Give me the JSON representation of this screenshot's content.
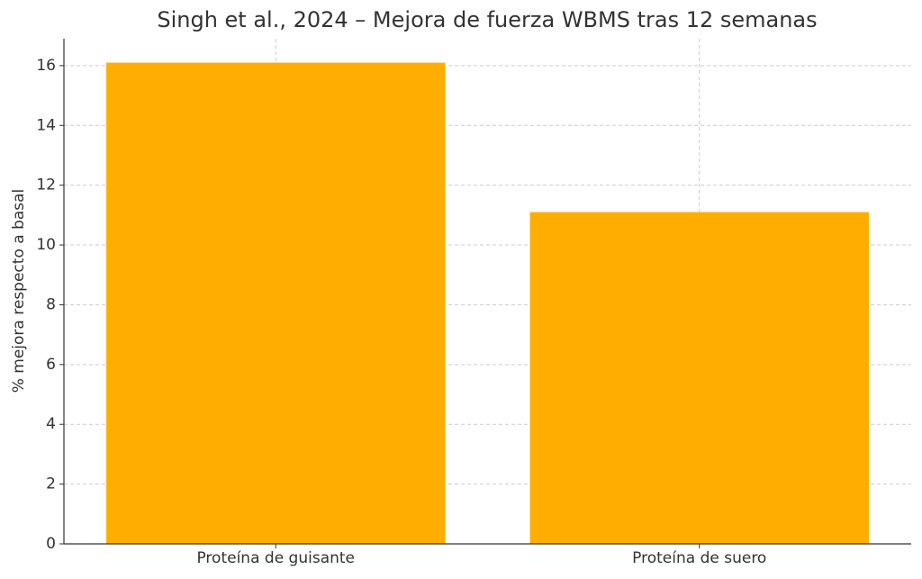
{
  "chart_data": {
    "type": "bar",
    "title": "Singh et al., 2024 – Mejora de fuerza WBMS tras 12 semanas",
    "y_label": "% mejora respecto a basal",
    "categories": [
      "Proteína de guisante",
      "Proteína de suero"
    ],
    "values": [
      16.1,
      11.1
    ],
    "color": "#ffae00",
    "ylim": [
      0,
      16.9
    ],
    "yticks": [
      0,
      2,
      4,
      6,
      8,
      10,
      12,
      14,
      16
    ],
    "grid": true
  }
}
